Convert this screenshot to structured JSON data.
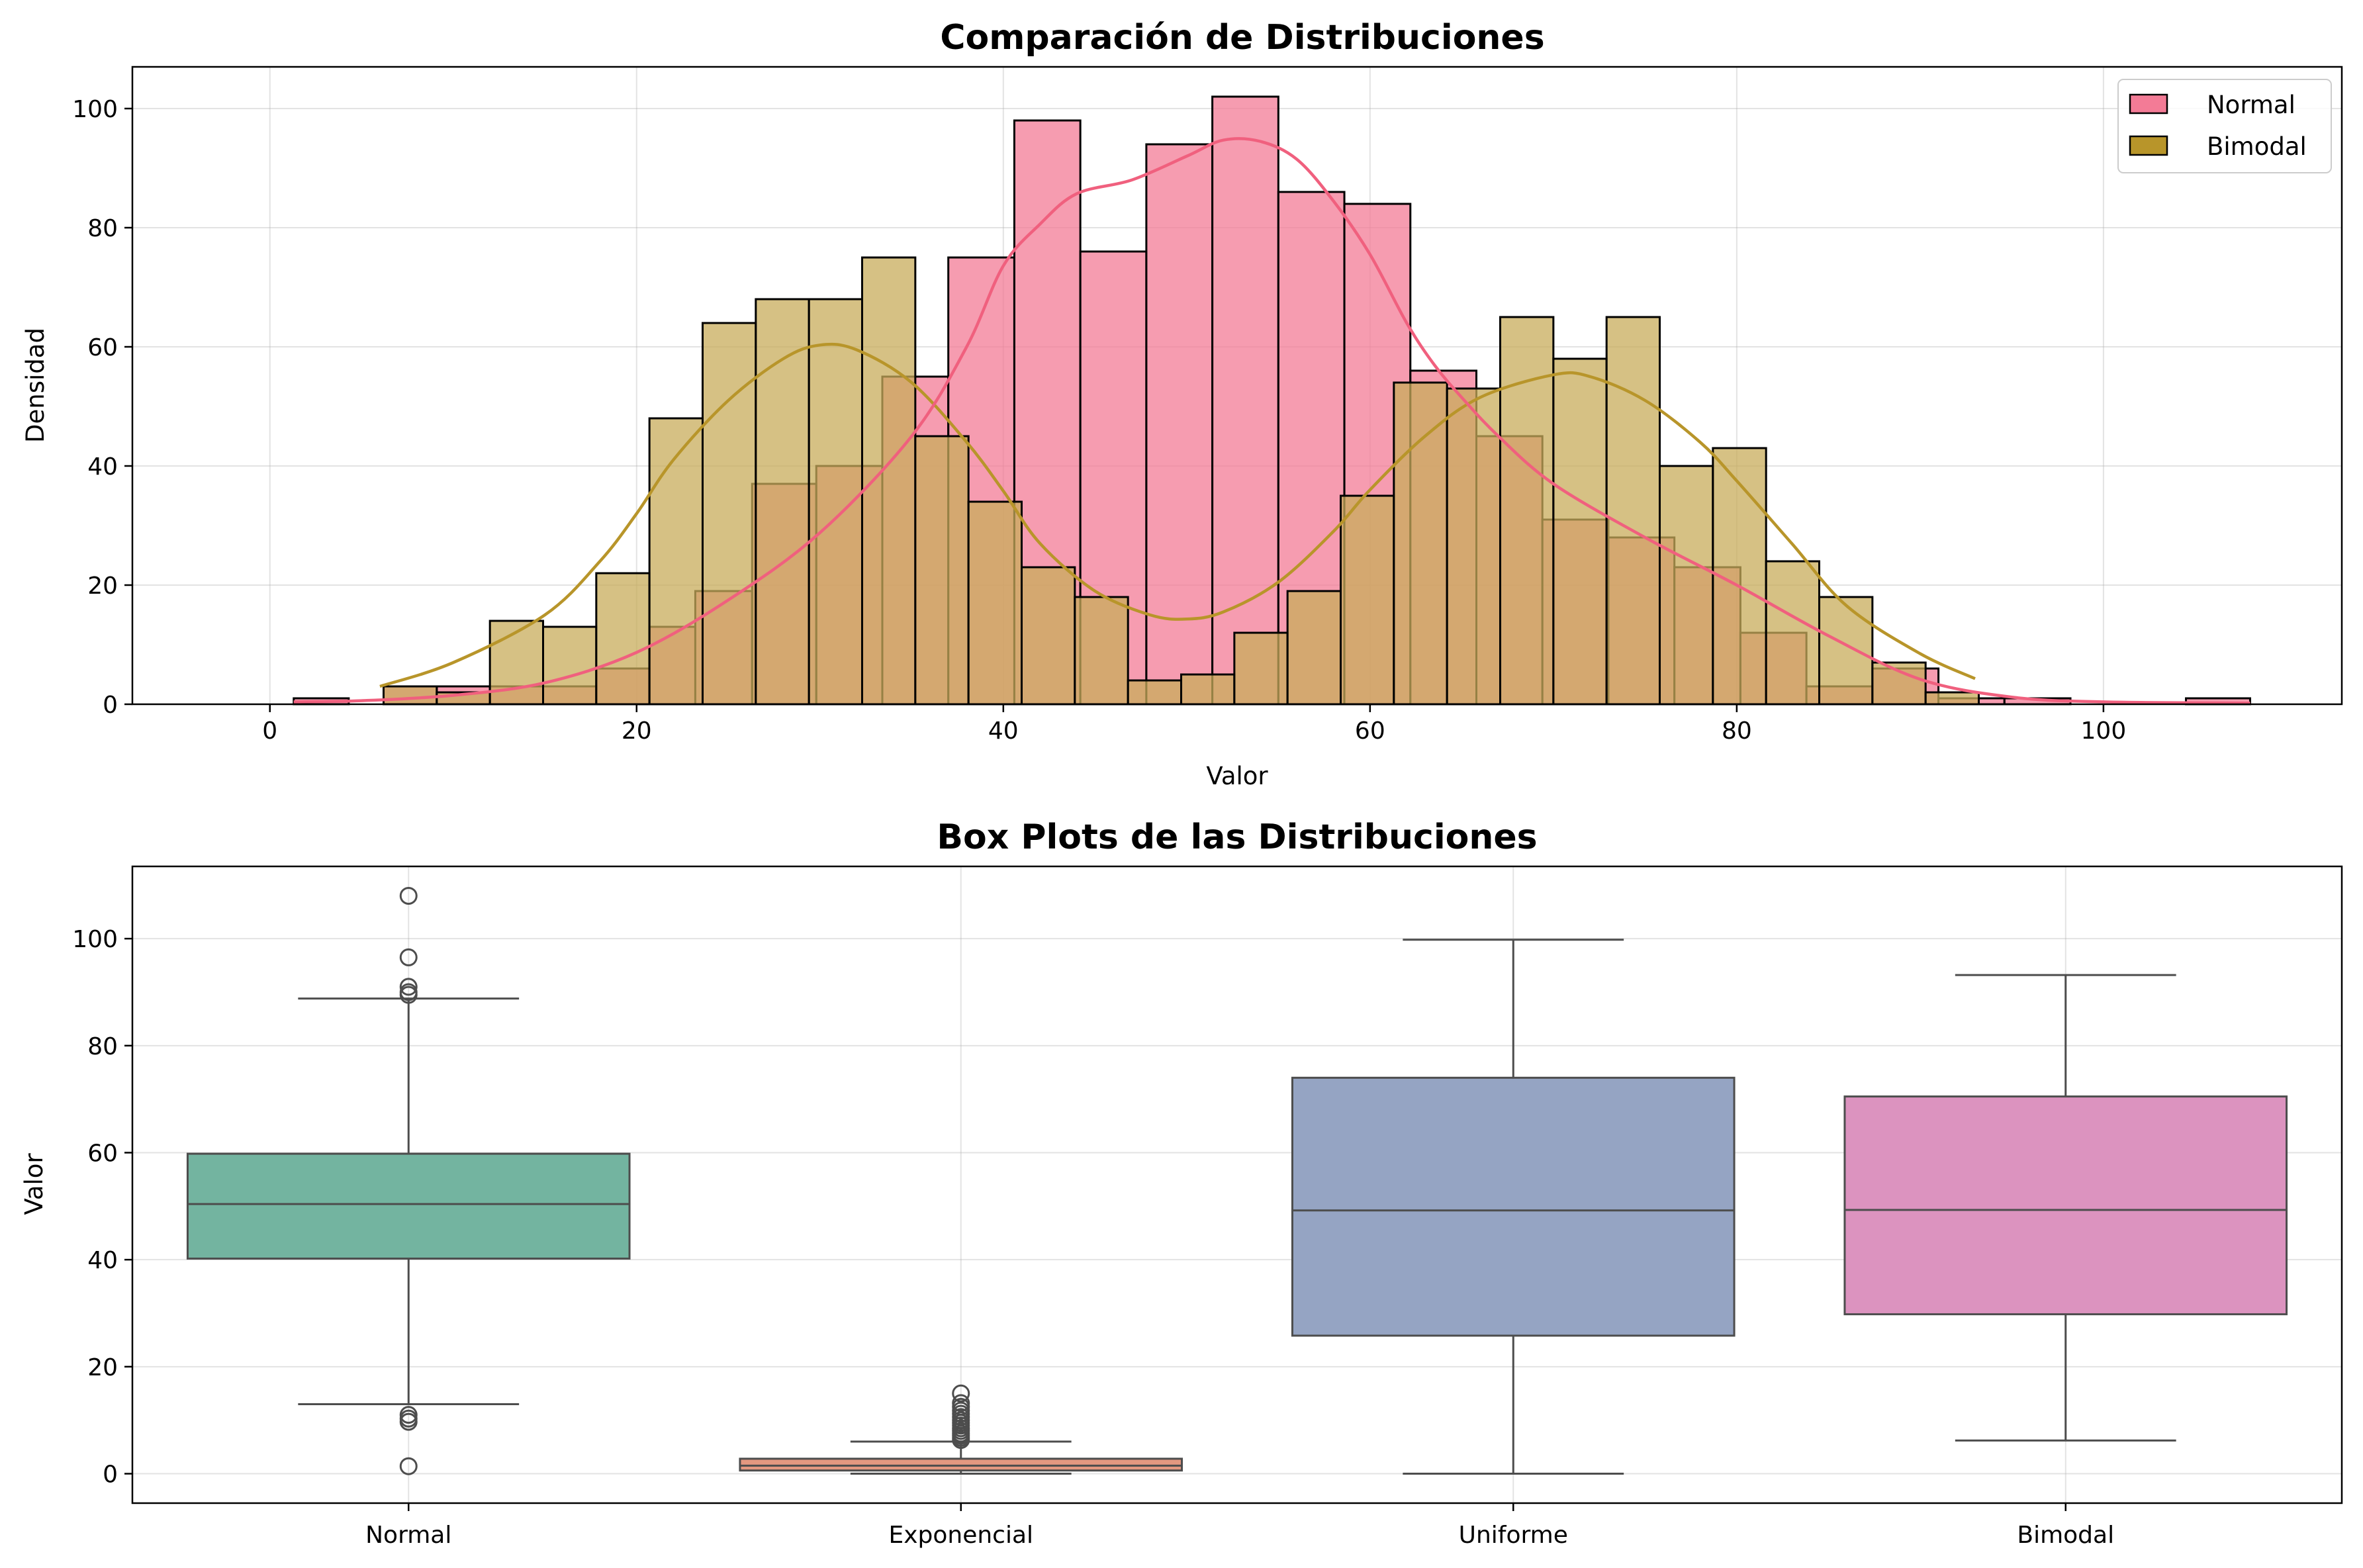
{
  "chart_data": [
    {
      "type": "histogram",
      "title": "Comparación de Distribuciones",
      "xlabel": "Valor",
      "ylabel": "Densidad",
      "xlim": [
        -7.5,
        113
      ],
      "ylim": [
        0,
        107
      ],
      "xticks": [
        0,
        20,
        40,
        60,
        80,
        100
      ],
      "yticks": [
        0,
        20,
        40,
        60,
        80,
        100
      ],
      "grid": true,
      "legend": {
        "placement": "top-right",
        "entries": [
          "Normal",
          "Bimodal"
        ]
      },
      "colors": {
        "Normal": "#f37b96",
        "Bimodal": "#b8952a"
      },
      "series": [
        {
          "name": "Normal",
          "color": "#f37b96",
          "kde_color": "#f0607e",
          "bins": [
            {
              "x0": 1.3,
              "x1": 4.3,
              "count": 1
            },
            {
              "x0": 4.3,
              "x1": 6.2,
              "count": 0
            },
            {
              "x0": 6.2,
              "x1": 9.1,
              "count": 3
            },
            {
              "x0": 9.1,
              "x1": 12.0,
              "count": 3
            },
            {
              "x0": 12.0,
              "x1": 14.9,
              "count": 3
            },
            {
              "x0": 14.9,
              "x1": 17.8,
              "count": 3
            },
            {
              "x0": 17.8,
              "x1": 20.7,
              "count": 6
            },
            {
              "x0": 20.7,
              "x1": 23.2,
              "count": 13
            },
            {
              "x0": 23.2,
              "x1": 26.3,
              "count": 19
            },
            {
              "x0": 26.3,
              "x1": 29.8,
              "count": 37
            },
            {
              "x0": 29.8,
              "x1": 33.4,
              "count": 40
            },
            {
              "x0": 33.4,
              "x1": 37.0,
              "count": 55
            },
            {
              "x0": 37.0,
              "x1": 40.6,
              "count": 75
            },
            {
              "x0": 40.6,
              "x1": 44.2,
              "count": 98
            },
            {
              "x0": 44.2,
              "x1": 47.8,
              "count": 76
            },
            {
              "x0": 47.8,
              "x1": 51.4,
              "count": 94
            },
            {
              "x0": 51.4,
              "x1": 55.0,
              "count": 102
            },
            {
              "x0": 55.0,
              "x1": 58.6,
              "count": 86
            },
            {
              "x0": 58.6,
              "x1": 62.2,
              "count": 84
            },
            {
              "x0": 62.2,
              "x1": 65.8,
              "count": 56
            },
            {
              "x0": 65.8,
              "x1": 69.4,
              "count": 45
            },
            {
              "x0": 69.4,
              "x1": 73.0,
              "count": 31
            },
            {
              "x0": 73.0,
              "x1": 76.6,
              "count": 28
            },
            {
              "x0": 76.6,
              "x1": 80.2,
              "count": 23
            },
            {
              "x0": 80.2,
              "x1": 83.8,
              "count": 12
            },
            {
              "x0": 83.8,
              "x1": 87.4,
              "count": 3
            },
            {
              "x0": 87.4,
              "x1": 91.0,
              "count": 6
            },
            {
              "x0": 91.0,
              "x1": 94.6,
              "count": 1
            },
            {
              "x0": 94.6,
              "x1": 98.2,
              "count": 1
            },
            {
              "x0": 104.5,
              "x1": 108.0,
              "count": 1
            }
          ],
          "kde": [
            [
              1.3,
              0.4
            ],
            [
              5,
              0.6
            ],
            [
              10,
              1.5
            ],
            [
              15,
              3.6
            ],
            [
              20,
              8.7
            ],
            [
              25,
              17.5
            ],
            [
              30,
              28.8
            ],
            [
              35,
              45
            ],
            [
              38,
              60
            ],
            [
              40,
              73.6
            ],
            [
              42,
              80.6
            ],
            [
              44,
              85.7
            ],
            [
              47,
              88
            ],
            [
              50,
              92
            ],
            [
              52,
              94.7
            ],
            [
              54,
              94.5
            ],
            [
              56,
              91.5
            ],
            [
              58,
              84.5
            ],
            [
              60,
              75.5
            ],
            [
              62,
              64
            ],
            [
              63.5,
              57
            ],
            [
              65,
              51.5
            ],
            [
              67,
              45
            ],
            [
              70,
              37
            ],
            [
              75,
              28
            ],
            [
              80,
              20
            ],
            [
              85,
              11.5
            ],
            [
              90,
              4.2
            ],
            [
              95,
              1.2
            ],
            [
              100,
              0.4
            ],
            [
              108,
              0.2
            ]
          ]
        },
        {
          "name": "Bimodal",
          "color": "#c8ac5b",
          "kde_color": "#b8952a",
          "bins": [
            {
              "x0": 6.2,
              "x1": 9.1,
              "count": 3
            },
            {
              "x0": 9.1,
              "x1": 12.0,
              "count": 2
            },
            {
              "x0": 12.0,
              "x1": 14.9,
              "count": 14
            },
            {
              "x0": 14.9,
              "x1": 17.8,
              "count": 13
            },
            {
              "x0": 17.8,
              "x1": 20.7,
              "count": 22
            },
            {
              "x0": 20.7,
              "x1": 23.6,
              "count": 48
            },
            {
              "x0": 23.6,
              "x1": 26.5,
              "count": 64
            },
            {
              "x0": 26.5,
              "x1": 29.4,
              "count": 68
            },
            {
              "x0": 29.4,
              "x1": 32.3,
              "count": 68
            },
            {
              "x0": 32.3,
              "x1": 35.2,
              "count": 75
            },
            {
              "x0": 35.2,
              "x1": 38.1,
              "count": 45
            },
            {
              "x0": 38.1,
              "x1": 41.0,
              "count": 34
            },
            {
              "x0": 41.0,
              "x1": 43.9,
              "count": 23
            },
            {
              "x0": 43.9,
              "x1": 46.8,
              "count": 18
            },
            {
              "x0": 46.8,
              "x1": 49.7,
              "count": 4
            },
            {
              "x0": 49.7,
              "x1": 52.6,
              "count": 5
            },
            {
              "x0": 52.6,
              "x1": 55.5,
              "count": 12
            },
            {
              "x0": 55.5,
              "x1": 58.4,
              "count": 19
            },
            {
              "x0": 58.4,
              "x1": 61.3,
              "count": 35
            },
            {
              "x0": 61.3,
              "x1": 64.2,
              "count": 54
            },
            {
              "x0": 64.2,
              "x1": 67.1,
              "count": 53
            },
            {
              "x0": 67.1,
              "x1": 70.0,
              "count": 65
            },
            {
              "x0": 70.0,
              "x1": 72.9,
              "count": 58
            },
            {
              "x0": 72.9,
              "x1": 75.8,
              "count": 65
            },
            {
              "x0": 75.8,
              "x1": 78.7,
              "count": 40
            },
            {
              "x0": 78.7,
              "x1": 81.6,
              "count": 43
            },
            {
              "x0": 81.6,
              "x1": 84.5,
              "count": 24
            },
            {
              "x0": 84.5,
              "x1": 87.4,
              "count": 18
            },
            {
              "x0": 87.4,
              "x1": 90.3,
              "count": 7
            },
            {
              "x0": 90.3,
              "x1": 93.2,
              "count": 2
            }
          ],
          "kde": [
            [
              6,
              3
            ],
            [
              10,
              7
            ],
            [
              15,
              15
            ],
            [
              18,
              24
            ],
            [
              20,
              32
            ],
            [
              22,
              41
            ],
            [
              25,
              51
            ],
            [
              28,
              58
            ],
            [
              30,
              60.3
            ],
            [
              32,
              59.5
            ],
            [
              35,
              54
            ],
            [
              38,
              44
            ],
            [
              40,
              35.8
            ],
            [
              42,
              27
            ],
            [
              45,
              19
            ],
            [
              48,
              15
            ],
            [
              50,
              14.3
            ],
            [
              52,
              15.5
            ],
            [
              55,
              20.5
            ],
            [
              58,
              29
            ],
            [
              60,
              36
            ],
            [
              63,
              45
            ],
            [
              66,
              51.5
            ],
            [
              70,
              55.3
            ],
            [
              72,
              55
            ],
            [
              75,
              51
            ],
            [
              78,
              44
            ],
            [
              80,
              37.5
            ],
            [
              83,
              27
            ],
            [
              86,
              16.5
            ],
            [
              90,
              8.5
            ],
            [
              93,
              4.3
            ]
          ]
        }
      ]
    },
    {
      "type": "box",
      "title": "Box Plots de las Distribuciones",
      "xlabel": "",
      "ylabel": "Valor",
      "ylim": [
        -5.5,
        113.5
      ],
      "yticks": [
        0,
        20,
        40,
        60,
        80,
        100
      ],
      "grid": true,
      "categories": [
        "Normal",
        "Exponencial",
        "Uniforme",
        "Bimodal"
      ],
      "boxes": [
        {
          "name": "Normal",
          "color": "#73b4a0",
          "whisker_low": 13,
          "q1": 40.2,
          "median": 50.4,
          "q3": 59.8,
          "whisker_high": 88.8,
          "outliers": [
            108,
            96.5,
            91,
            90,
            89.5,
            11,
            10.3,
            9.7,
            1.4
          ]
        },
        {
          "name": "Exponencial",
          "color": "#e39880",
          "whisker_low": 0.0,
          "q1": 0.6,
          "median": 1.5,
          "q3": 2.8,
          "whisker_high": 6.0,
          "outliers": [
            15,
            13.2,
            12.5,
            11.8,
            11.2,
            10.6,
            10,
            9.5,
            9,
            8.5,
            8,
            7.5,
            7.1,
            6.7,
            6.3
          ]
        },
        {
          "name": "Uniforme",
          "color": "#95a4c3",
          "whisker_low": 0.0,
          "q1": 25.8,
          "median": 49.2,
          "q3": 74,
          "whisker_high": 99.8
        },
        {
          "name": "Bimodal",
          "color": "#dc93bf",
          "whisker_low": 6.2,
          "q1": 29.8,
          "median": 49.3,
          "q3": 70.5,
          "whisker_high": 93.2
        }
      ]
    }
  ]
}
